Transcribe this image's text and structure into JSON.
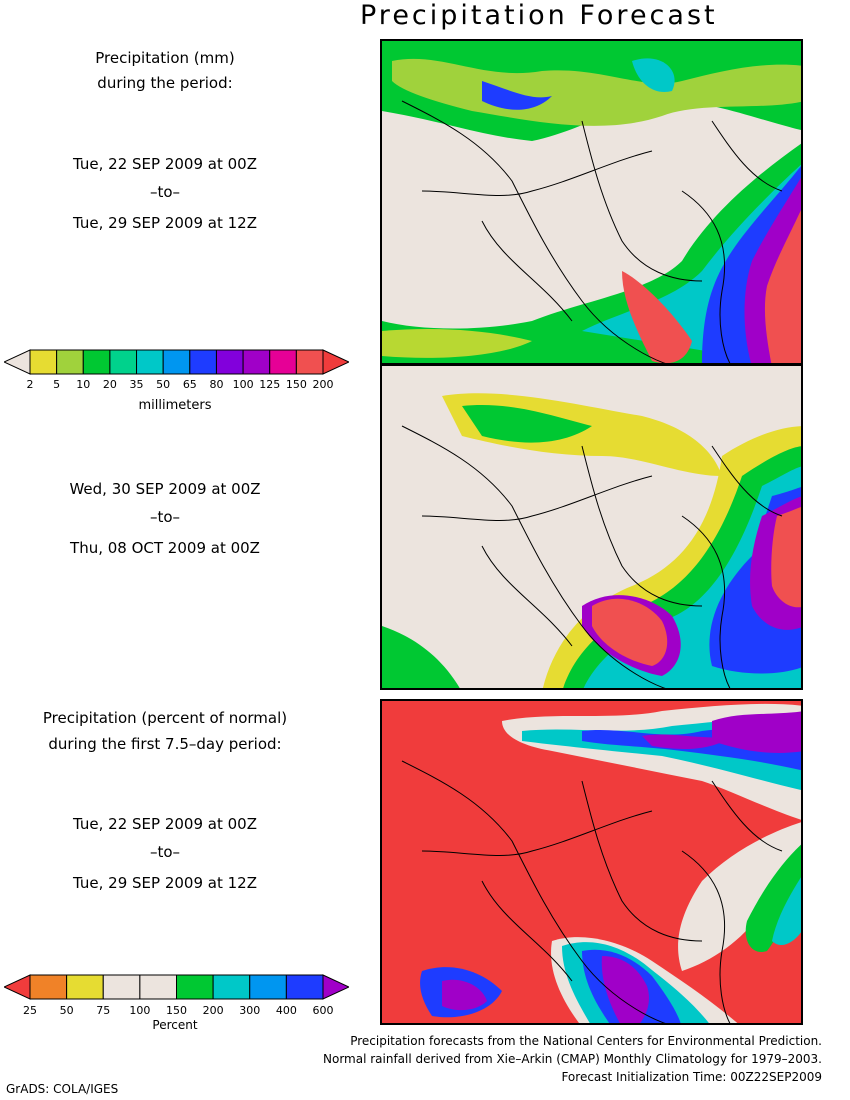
{
  "title": "Precipitation Forecast",
  "panel1": {
    "heading_line1": "Precipitation (mm)",
    "heading_line2": "during the period:",
    "start": "Tue, 22 SEP 2009 at 00Z",
    "to": "–to–",
    "end": "Tue, 29 SEP 2009 at 12Z"
  },
  "panel2": {
    "start": "Wed, 30 SEP 2009 at 00Z",
    "to": "–to–",
    "end": "Thu, 08 OCT 2009 at 00Z"
  },
  "panel3": {
    "heading_line1": "Precipitation (percent of normal)",
    "heading_line2": "during the first 7.5–day period:",
    "start": "Tue, 22 SEP 2009 at 00Z",
    "to": "–to–",
    "end": "Tue, 29 SEP 2009 at 12Z"
  },
  "colorbar_mm": {
    "unit": "millimeters",
    "labels": [
      "2",
      "5",
      "10",
      "20",
      "35",
      "50",
      "65",
      "80",
      "100",
      "125",
      "150",
      "200"
    ],
    "colors": [
      "#ece4de",
      "#e6dc32",
      "#a0d23c",
      "#00c832",
      "#00d28c",
      "#00c8c8",
      "#0096f0",
      "#1e3cff",
      "#8200dc",
      "#a000c8",
      "#e60096",
      "#f05050",
      "#f03c3c"
    ]
  },
  "colorbar_pct": {
    "unit": "Percent",
    "labels": [
      "25",
      "50",
      "75",
      "100",
      "150",
      "200",
      "300",
      "400",
      "600"
    ],
    "colors": [
      "#f03c3c",
      "#f08228",
      "#e6dc32",
      "#ece4de",
      "#ece4de",
      "#00c832",
      "#00c8c8",
      "#0096f0",
      "#1e3cff",
      "#a000c8"
    ]
  },
  "footer": {
    "line1": "Precipitation forecasts from the National Centers for Environmental Prediction.",
    "line2": "Normal rainfall derived from Xie–Arkin (CMAP) Monthly Climatology for 1979–2003.",
    "line3": "Forecast Initialization Time: 00Z22SEP2009"
  },
  "credit": "GrADS: COLA/IGES"
}
